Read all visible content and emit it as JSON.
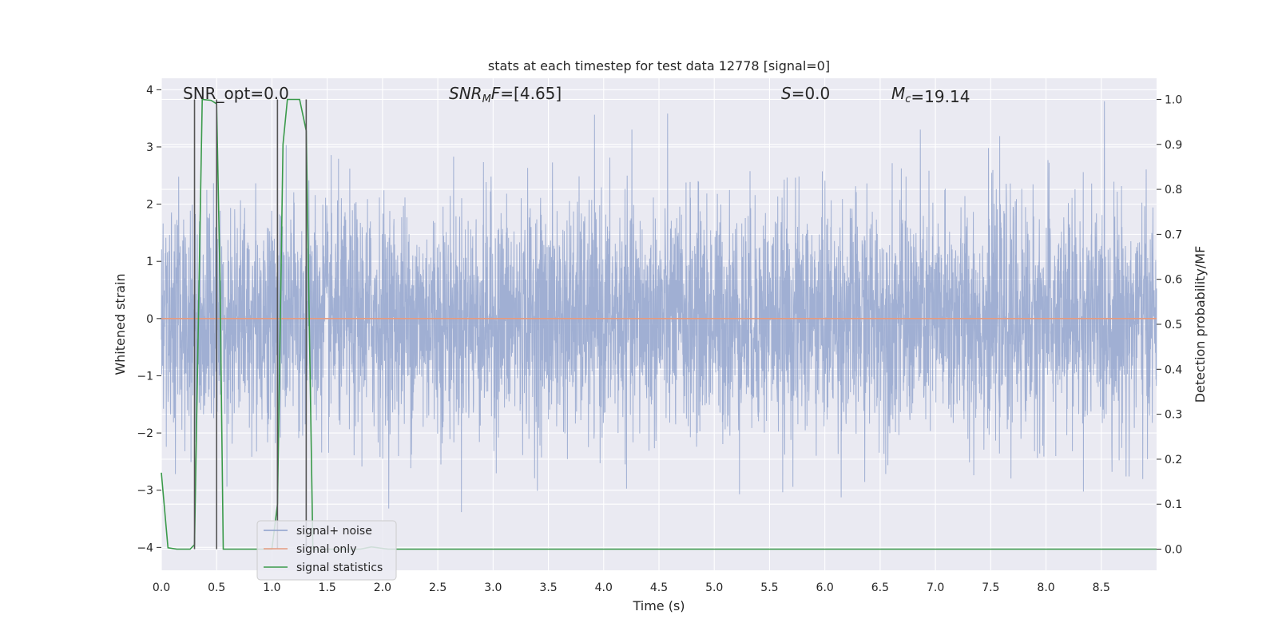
{
  "chart_data": {
    "type": "line",
    "title": "stats at each timestep for test data 12778 [signal=0]",
    "xlabel": "Time (s)",
    "ylabel": "Whitened strain",
    "ylabel_right": "Detection probability/MF",
    "xlim": [
      0.0,
      9.0
    ],
    "ylim": [
      -4.4,
      4.2
    ],
    "ylim_right": [
      -0.047,
      1.047
    ],
    "xticks": [
      "0.0",
      "0.5",
      "1.0",
      "1.5",
      "2.0",
      "2.5",
      "3.0",
      "3.5",
      "4.0",
      "4.5",
      "5.0",
      "5.5",
      "6.0",
      "6.5",
      "7.0",
      "7.5",
      "8.0",
      "8.5"
    ],
    "yticks": [
      "4",
      "3",
      "2",
      "1",
      "0",
      "−1",
      "−2",
      "−3",
      "−4"
    ],
    "yticks_right": [
      "1.0",
      "0.9",
      "0.8",
      "0.7",
      "0.6",
      "0.5",
      "0.4",
      "0.3",
      "0.2",
      "0.1",
      "0.0"
    ],
    "grid": true,
    "annotations": [
      {
        "text": "SNR_opt=0.0"
      },
      {
        "text": "SNRMF=[4.65]",
        "math": [
          {
            "t": "SNR",
            "it": true
          },
          {
            "t": "MF",
            "it": true,
            "sub": true,
            "first": 1
          },
          {
            "t": "=[4.65]"
          }
        ]
      },
      {
        "text": "S=0.0",
        "math": [
          {
            "t": "S",
            "it": true
          },
          {
            "t": "=0.0"
          }
        ]
      },
      {
        "text": "Mc=19.14",
        "math": [
          {
            "t": "M",
            "it": true
          },
          {
            "t": "c",
            "it": true,
            "sub": true
          },
          {
            "t": "=19.14"
          }
        ]
      }
    ],
    "series": [
      {
        "name": "signal+ noise",
        "color": "#8da0cb",
        "kind": "noise",
        "amplitude_envelope": [
          -3.5,
          3.8
        ]
      },
      {
        "name": "signal only",
        "color": "#e59b80",
        "kind": "line",
        "values": [
          [
            0.0,
            0.0
          ],
          [
            9.0,
            0.0
          ]
        ]
      },
      {
        "name": "signal statistics",
        "color": "#3a9a4a",
        "kind": "line",
        "axis": "right",
        "values": [
          [
            0.0,
            0.17
          ],
          [
            0.06,
            0.003
          ],
          [
            0.14,
            0.0
          ],
          [
            0.26,
            0.0
          ],
          [
            0.3,
            0.01
          ],
          [
            0.37,
            1.0
          ],
          [
            0.45,
            0.998
          ],
          [
            0.5,
            0.99
          ],
          [
            0.53,
            0.6
          ],
          [
            0.56,
            0.0
          ],
          [
            0.9,
            0.0
          ],
          [
            1.0,
            0.0
          ],
          [
            1.05,
            0.1
          ],
          [
            1.1,
            0.9
          ],
          [
            1.14,
            1.0
          ],
          [
            1.25,
            1.0
          ],
          [
            1.31,
            0.93
          ],
          [
            1.37,
            0.0
          ],
          [
            1.8,
            0.0
          ],
          [
            1.9,
            0.005
          ],
          [
            2.05,
            0.0
          ],
          [
            9.0,
            0.0
          ]
        ]
      },
      {
        "name": "",
        "color": "#555555",
        "kind": "vlines",
        "axis": "right",
        "values": [
          [
            0.3,
            0.0,
            1.0
          ],
          [
            0.5,
            0.0,
            1.0
          ],
          [
            1.05,
            0.0,
            1.0
          ],
          [
            1.31,
            0.0,
            1.0
          ]
        ]
      }
    ],
    "legend_position": "lower-left"
  }
}
